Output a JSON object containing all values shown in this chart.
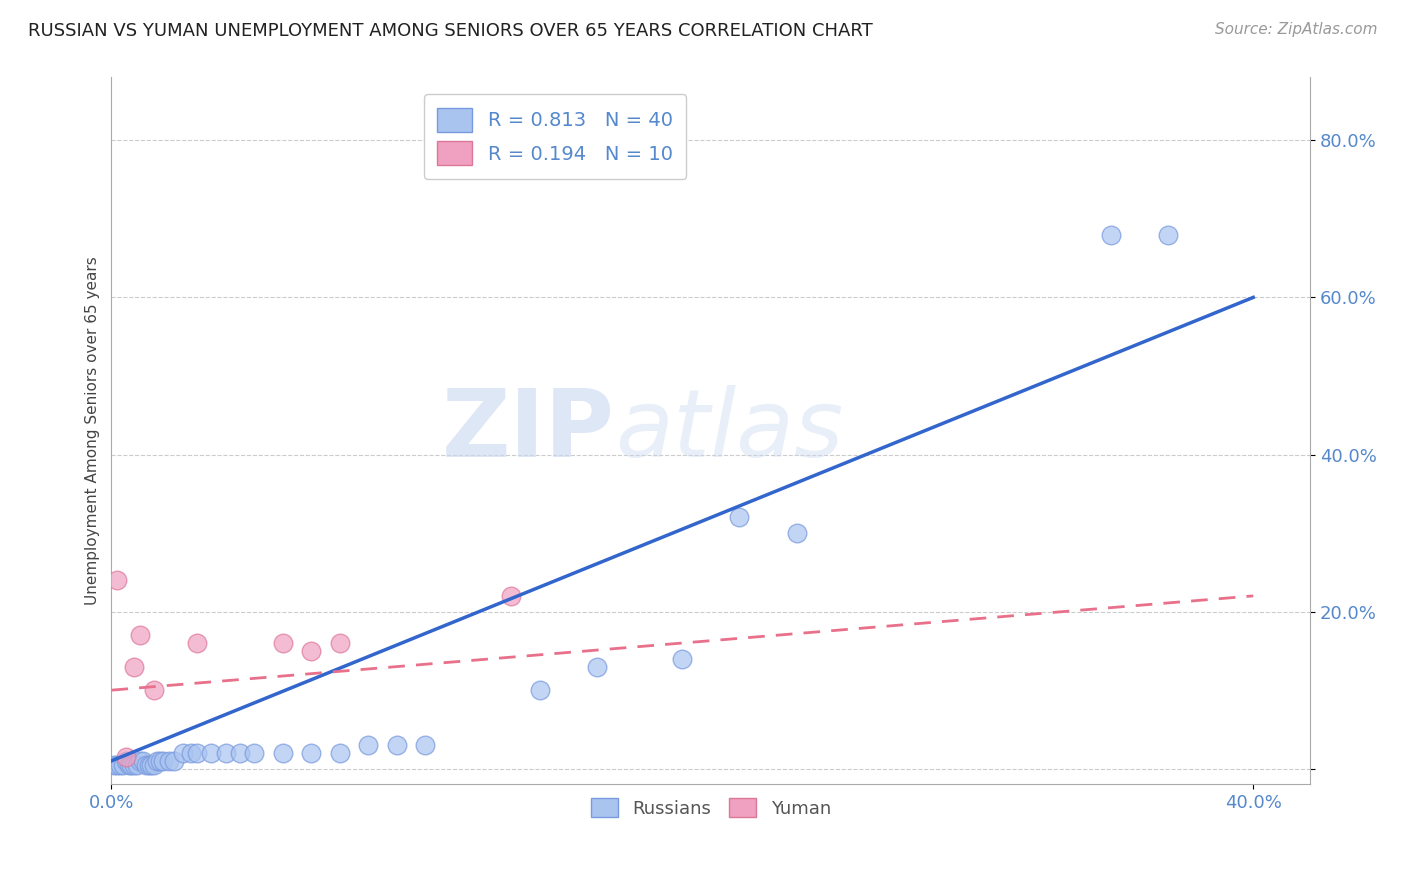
{
  "title": "RUSSIAN VS YUMAN UNEMPLOYMENT AMONG SENIORS OVER 65 YEARS CORRELATION CHART",
  "source": "Source: ZipAtlas.com",
  "ylabel_label": "Unemployment Among Seniors over 65 years",
  "xlim": [
    0.0,
    0.42
  ],
  "ylim": [
    -0.02,
    0.88
  ],
  "ytick_vals": [
    0.0,
    0.2,
    0.4,
    0.6,
    0.8
  ],
  "ytick_labels": [
    "",
    "20.0%",
    "40.0%",
    "60.0%",
    "80.0%"
  ],
  "xtick_vals": [
    0.0,
    0.4
  ],
  "xtick_labels": [
    "0.0%",
    "40.0%"
  ],
  "russians_scatter": [
    [
      0.001,
      0.005
    ],
    [
      0.002,
      0.005
    ],
    [
      0.003,
      0.005
    ],
    [
      0.004,
      0.005
    ],
    [
      0.005,
      0.01
    ],
    [
      0.006,
      0.005
    ],
    [
      0.007,
      0.005
    ],
    [
      0.008,
      0.005
    ],
    [
      0.009,
      0.005
    ],
    [
      0.01,
      0.01
    ],
    [
      0.011,
      0.01
    ],
    [
      0.012,
      0.005
    ],
    [
      0.013,
      0.005
    ],
    [
      0.014,
      0.005
    ],
    [
      0.015,
      0.005
    ],
    [
      0.016,
      0.01
    ],
    [
      0.017,
      0.01
    ],
    [
      0.018,
      0.01
    ],
    [
      0.02,
      0.01
    ],
    [
      0.022,
      0.01
    ],
    [
      0.025,
      0.02
    ],
    [
      0.028,
      0.02
    ],
    [
      0.03,
      0.02
    ],
    [
      0.035,
      0.02
    ],
    [
      0.04,
      0.02
    ],
    [
      0.045,
      0.02
    ],
    [
      0.05,
      0.02
    ],
    [
      0.06,
      0.02
    ],
    [
      0.07,
      0.02
    ],
    [
      0.08,
      0.02
    ],
    [
      0.09,
      0.03
    ],
    [
      0.1,
      0.03
    ],
    [
      0.11,
      0.03
    ],
    [
      0.15,
      0.1
    ],
    [
      0.17,
      0.13
    ],
    [
      0.2,
      0.14
    ],
    [
      0.22,
      0.32
    ],
    [
      0.24,
      0.3
    ],
    [
      0.35,
      0.68
    ],
    [
      0.37,
      0.68
    ]
  ],
  "yuman_scatter": [
    [
      0.002,
      0.24
    ],
    [
      0.005,
      0.015
    ],
    [
      0.008,
      0.13
    ],
    [
      0.01,
      0.17
    ],
    [
      0.015,
      0.1
    ],
    [
      0.03,
      0.16
    ],
    [
      0.06,
      0.16
    ],
    [
      0.07,
      0.15
    ],
    [
      0.08,
      0.16
    ],
    [
      0.14,
      0.22
    ]
  ],
  "russians_line": [
    [
      0.0,
      0.01
    ],
    [
      0.4,
      0.6
    ]
  ],
  "yuman_line": [
    [
      0.0,
      0.1
    ],
    [
      0.4,
      0.22
    ]
  ],
  "scatter_russian_color": "#aac4f0",
  "scatter_yuman_color": "#f0a0c0",
  "line_russian_color": "#3366cc",
  "line_yuman_color": "#e8708a",
  "scatter_russian_edge": "#7799dd",
  "scatter_yuman_edge": "#dd7799",
  "watermark_zip": "ZIP",
  "watermark_atlas": "atlas",
  "background_color": "#ffffff",
  "grid_color": "#cccccc",
  "tick_color": "#5588cc",
  "legend_r_russian": "R = 0.813",
  "legend_n_russian": "N = 40",
  "legend_r_yuman": "R = 0.194",
  "legend_n_yuman": "N = 10"
}
